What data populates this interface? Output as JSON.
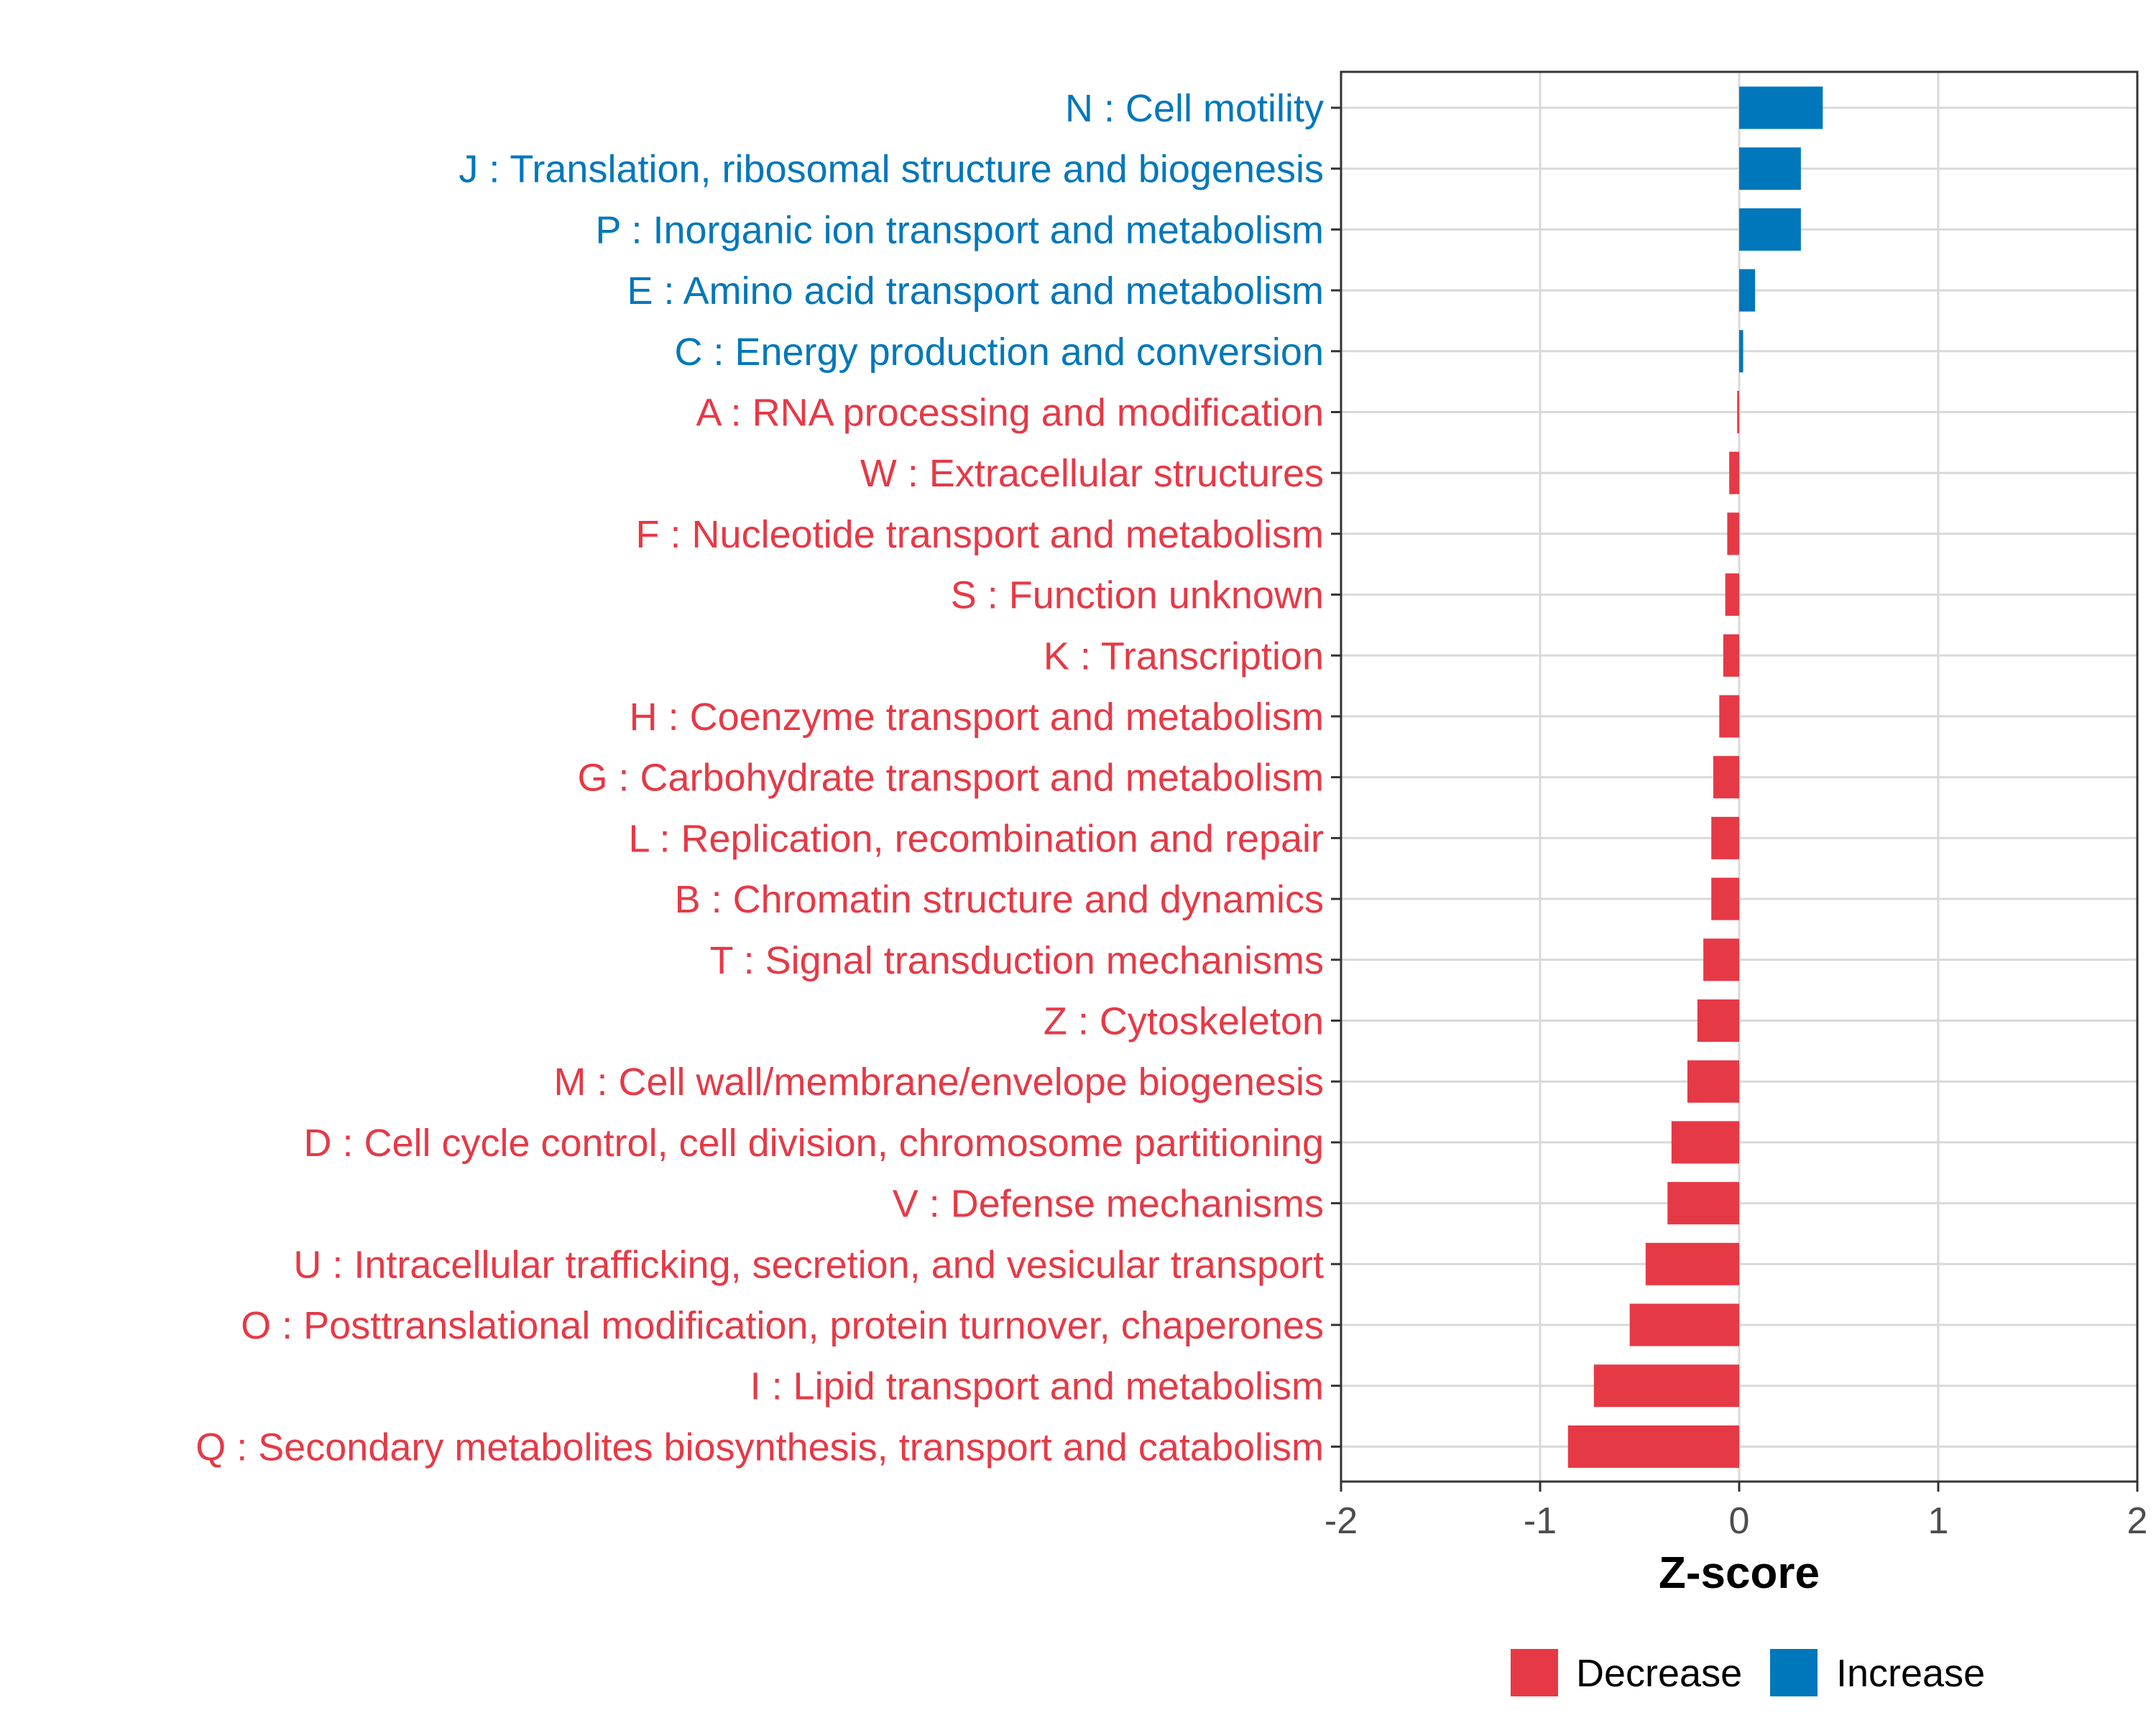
{
  "chart_data": {
    "type": "bar",
    "orientation": "horizontal",
    "xlabel": "Z-score",
    "xlim": [
      -2,
      2
    ],
    "xticks": [
      -2,
      -1,
      0,
      1,
      2
    ],
    "xtick_labels": [
      "-2",
      "-1",
      "0",
      "1",
      "2"
    ],
    "grid": true,
    "legend_position": "bottom",
    "colors": {
      "Decrease": "#E63946",
      "Increase": "#0077BB"
    },
    "categories": [
      "N : Cell motility",
      "J : Translation, ribosomal structure and biogenesis",
      "P : Inorganic ion transport and metabolism",
      "E : Amino acid transport and metabolism",
      "C : Energy production and conversion",
      "A : RNA processing and modification",
      "W : Extracellular structures",
      "F : Nucleotide transport and metabolism",
      "S : Function unknown",
      "K : Transcription",
      "H : Coenzyme transport and metabolism",
      "G : Carbohydrate transport and metabolism",
      "L : Replication, recombination and repair",
      "B : Chromatin structure and dynamics",
      "T : Signal transduction mechanisms",
      "Z : Cytoskeleton",
      "M : Cell wall/membrane/envelope biogenesis",
      "D : Cell cycle control, cell division, chromosome partitioning",
      "V : Defense mechanisms",
      "U : Intracellular trafficking, secretion, and vesicular transport",
      "O : Posttranslational modification, protein turnover, chaperones",
      "I : Lipid transport and metabolism",
      "Q : Secondary metabolites biosynthesis, transport and catabolism"
    ],
    "values": [
      0.42,
      0.31,
      0.31,
      0.08,
      0.02,
      -0.01,
      -0.05,
      -0.06,
      -0.07,
      -0.08,
      -0.1,
      -0.13,
      -0.14,
      -0.14,
      -0.18,
      -0.21,
      -0.26,
      -0.34,
      -0.36,
      -0.47,
      -0.55,
      -0.73,
      -0.86
    ],
    "groups": [
      "Increase",
      "Increase",
      "Increase",
      "Increase",
      "Increase",
      "Decrease",
      "Decrease",
      "Decrease",
      "Decrease",
      "Decrease",
      "Decrease",
      "Decrease",
      "Decrease",
      "Decrease",
      "Decrease",
      "Decrease",
      "Decrease",
      "Decrease",
      "Decrease",
      "Decrease",
      "Decrease",
      "Decrease",
      "Decrease"
    ],
    "legend": [
      {
        "label": "Decrease",
        "color": "#E63946"
      },
      {
        "label": "Increase",
        "color": "#0077BB"
      }
    ]
  }
}
